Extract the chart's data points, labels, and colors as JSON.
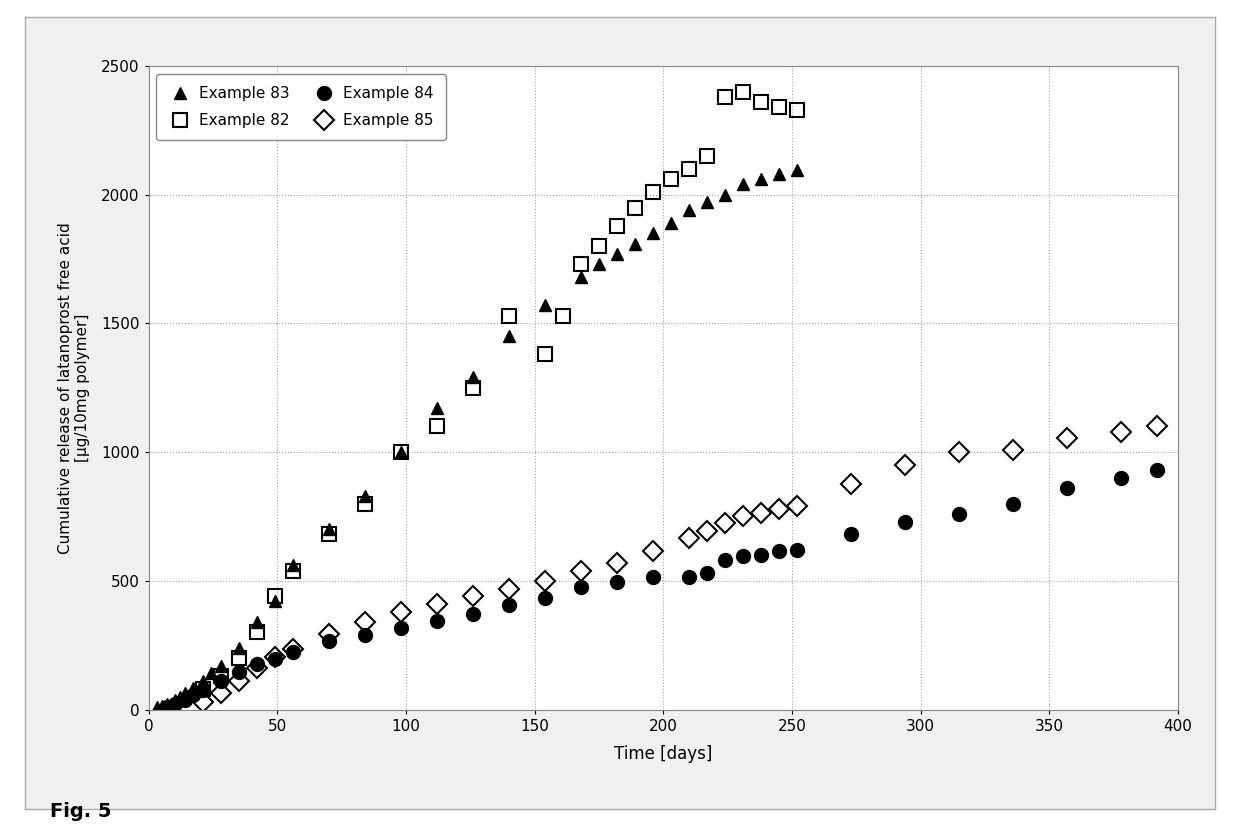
{
  "title": "",
  "xlabel": "Time [days]",
  "ylabel": "Cumulative release of latanoprost free acid\n[µg/10mg polymer]",
  "xlim": [
    0,
    400
  ],
  "ylim": [
    0,
    2500
  ],
  "xticks": [
    0,
    50,
    100,
    150,
    200,
    250,
    300,
    350,
    400
  ],
  "yticks": [
    0,
    500,
    1000,
    1500,
    2000,
    2500
  ],
  "fig_caption": "Fig. 5",
  "series": {
    "ex83": {
      "label": "Example 83",
      "marker": "^",
      "color": "black",
      "fillstyle": "full",
      "markersize": 8,
      "x": [
        3,
        5,
        7,
        10,
        12,
        14,
        17,
        21,
        24,
        28,
        35,
        42,
        49,
        56,
        70,
        84,
        98,
        112,
        126,
        140,
        154,
        168,
        175,
        182,
        189,
        196,
        203,
        210,
        217,
        224,
        231,
        238,
        245,
        252
      ],
      "y": [
        8,
        15,
        22,
        35,
        50,
        65,
        85,
        110,
        140,
        170,
        240,
        340,
        420,
        560,
        700,
        830,
        1000,
        1170,
        1290,
        1450,
        1570,
        1680,
        1730,
        1770,
        1810,
        1850,
        1890,
        1940,
        1970,
        2000,
        2040,
        2060,
        2080,
        2095
      ]
    },
    "ex82": {
      "label": "Example 82",
      "marker": "s",
      "color": "black",
      "fillstyle": "none",
      "markersize": 10,
      "x": [
        21,
        28,
        35,
        42,
        49,
        56,
        70,
        84,
        98,
        112,
        126,
        140,
        154,
        161,
        168,
        175,
        182,
        189,
        196,
        203,
        210,
        217,
        224,
        231,
        238,
        245,
        252
      ],
      "y": [
        80,
        130,
        200,
        300,
        440,
        540,
        680,
        800,
        1000,
        1100,
        1250,
        1530,
        1380,
        1530,
        1730,
        1800,
        1880,
        1950,
        2010,
        2060,
        2100,
        2150,
        2380,
        2400,
        2360,
        2340,
        2330
      ]
    },
    "ex84": {
      "label": "Example 84",
      "marker": "o",
      "color": "black",
      "fillstyle": "full",
      "markersize": 10,
      "x": [
        7,
        10,
        14,
        17,
        21,
        28,
        35,
        42,
        49,
        56,
        70,
        84,
        98,
        112,
        126,
        140,
        154,
        168,
        182,
        196,
        210,
        217,
        224,
        231,
        238,
        245,
        252,
        273,
        294,
        315,
        336,
        357,
        378,
        392
      ],
      "y": [
        10,
        20,
        35,
        55,
        75,
        110,
        145,
        175,
        195,
        225,
        265,
        290,
        315,
        345,
        370,
        405,
        435,
        475,
        495,
        515,
        515,
        530,
        580,
        595,
        600,
        615,
        620,
        680,
        730,
        760,
        800,
        860,
        900,
        930
      ]
    },
    "ex85": {
      "label": "Example 85",
      "marker": "D",
      "color": "black",
      "fillstyle": "none",
      "markersize": 10,
      "x": [
        21,
        28,
        35,
        42,
        49,
        56,
        70,
        84,
        98,
        112,
        126,
        140,
        154,
        168,
        182,
        196,
        210,
        217,
        224,
        231,
        238,
        245,
        252,
        273,
        294,
        315,
        336,
        357,
        378,
        392
      ],
      "y": [
        30,
        65,
        110,
        160,
        205,
        235,
        295,
        340,
        380,
        410,
        440,
        470,
        500,
        540,
        570,
        615,
        665,
        695,
        725,
        750,
        765,
        780,
        790,
        875,
        950,
        1000,
        1010,
        1055,
        1080,
        1100
      ]
    }
  },
  "background_color": "#f5f5f5",
  "plot_background": "#ffffff",
  "grid_color": "#999999",
  "border_color": "#888888",
  "outer_border_color": "#aaaaaa"
}
